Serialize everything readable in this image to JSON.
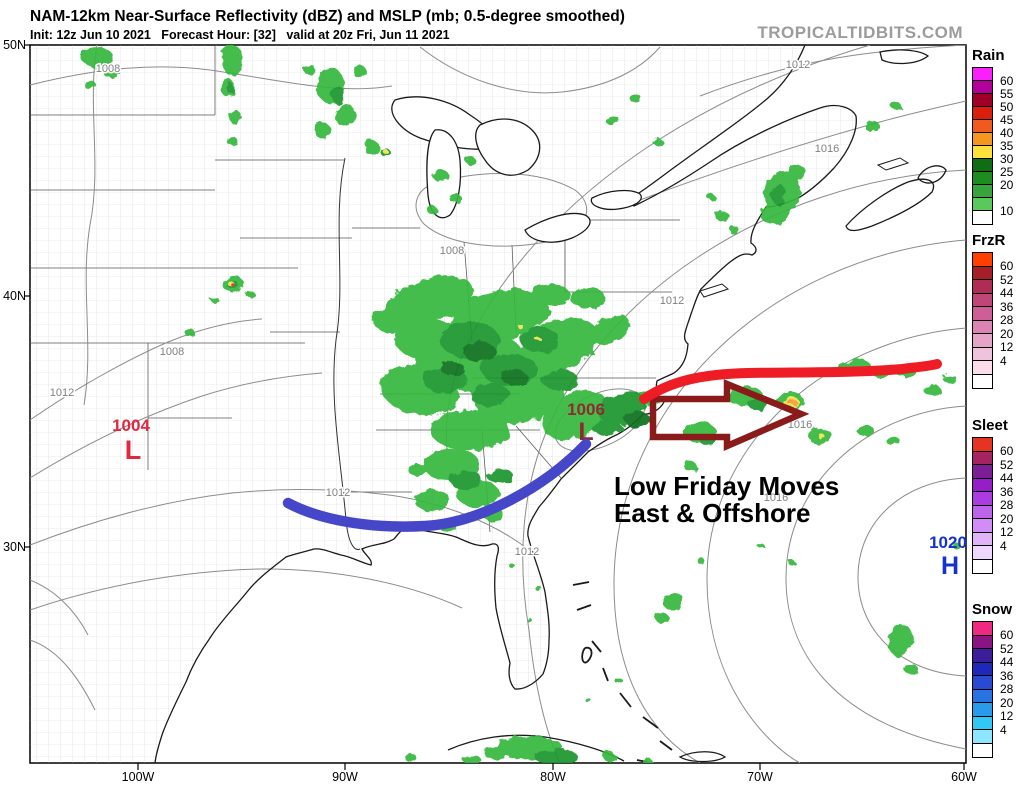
{
  "header": {
    "title": "NAM-12km Near-Surface Reflectivity (dBZ) and MSLP (mb; 0.5-degree smoothed)",
    "init_line": "Init: 12z Jun 10 2021   Forecast Hour: [32]   valid at 20z Fri, Jun 11 2021",
    "watermark": "TROPICALTIDBITS.COM"
  },
  "map": {
    "lat_labels": [
      "50N",
      "40N",
      "30N"
    ],
    "lon_labels": [
      "100W",
      "90W",
      "80W",
      "70W",
      "60W"
    ],
    "isobar_labels": [
      "1008",
      "1012",
      "1016",
      "1008",
      "1012",
      "1016",
      "1016",
      "1012",
      "1008",
      "1012",
      "1012"
    ],
    "pressure_centers": [
      {
        "pressure": "1004",
        "symbol": "L",
        "color": "#E02840"
      },
      {
        "pressure": "1006",
        "symbol": "L",
        "color": "#8F2A2F"
      },
      {
        "pressure": "1020",
        "symbol": "H",
        "color": "#1532CD"
      }
    ],
    "annotation": {
      "line1": "Low Friday Moves",
      "line2": "East & Offshore",
      "text_color": "#000000",
      "red_front_color": "#EE1C25",
      "blue_front_color": "#4646C8",
      "arrow_color": "#8B1A1A"
    }
  },
  "colorbars": [
    {
      "title": "Rain",
      "cells": [
        {
          "color": "#FB20FB",
          "label": "60"
        },
        {
          "color": "#B4009B",
          "label": "55"
        },
        {
          "color": "#A00028",
          "label": "50"
        },
        {
          "color": "#DC1E0F",
          "label": "45"
        },
        {
          "color": "#F05A1E",
          "label": "40"
        },
        {
          "color": "#F5961E",
          "label": "35"
        },
        {
          "color": "#FFE03C",
          "label": "30"
        },
        {
          "color": "#0F6E14",
          "label": "25"
        },
        {
          "color": "#1E8C1E",
          "label": "20"
        },
        {
          "color": "#37A53C",
          "label": ""
        },
        {
          "color": "#5AC85A",
          "label": "10"
        },
        {
          "color": "#FFFFFF",
          "label": ""
        }
      ]
    },
    {
      "title": "FrzR",
      "cells": [
        {
          "color": "#FF4000",
          "label": "60"
        },
        {
          "color": "#A51E28",
          "label": "52"
        },
        {
          "color": "#AF2D55",
          "label": "44"
        },
        {
          "color": "#BE4678",
          "label": "36"
        },
        {
          "color": "#CD5F96",
          "label": "28"
        },
        {
          "color": "#DC82B4",
          "label": "20"
        },
        {
          "color": "#E6A5C8",
          "label": "12"
        },
        {
          "color": "#F0C3DC",
          "label": "4"
        },
        {
          "color": "#FADCEB",
          "label": ""
        },
        {
          "color": "#FFFFFF",
          "label": ""
        }
      ]
    },
    {
      "title": "Sleet",
      "cells": [
        {
          "color": "#E63323",
          "label": "60"
        },
        {
          "color": "#A52360",
          "label": "52"
        },
        {
          "color": "#7D1E96",
          "label": "44"
        },
        {
          "color": "#961EC8",
          "label": "36"
        },
        {
          "color": "#AA3CE1",
          "label": "28"
        },
        {
          "color": "#BE64EB",
          "label": "20"
        },
        {
          "color": "#D28CF5",
          "label": "12"
        },
        {
          "color": "#E1B4FA",
          "label": "4"
        },
        {
          "color": "#F0D7FD",
          "label": ""
        },
        {
          "color": "#FFFFFF",
          "label": ""
        }
      ]
    },
    {
      "title": "Snow",
      "cells": [
        {
          "color": "#F02882",
          "label": "60"
        },
        {
          "color": "#8C1482",
          "label": "52"
        },
        {
          "color": "#3C1E9B",
          "label": "44"
        },
        {
          "color": "#1E28B9",
          "label": "36"
        },
        {
          "color": "#284BD2",
          "label": "28"
        },
        {
          "color": "#2873E1",
          "label": "20"
        },
        {
          "color": "#289BEB",
          "label": "12"
        },
        {
          "color": "#32C8F5",
          "label": "4"
        },
        {
          "color": "#8CE6FF",
          "label": ""
        },
        {
          "color": "#FFFFFF",
          "label": ""
        }
      ]
    }
  ]
}
